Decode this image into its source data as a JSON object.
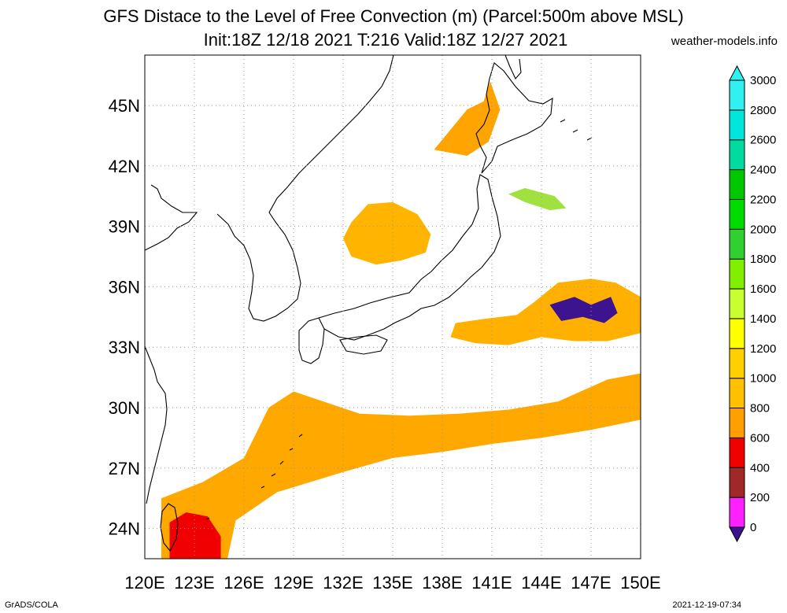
{
  "title_line1": "GFS Distace to the Level of Free Convection (m) (Parcel:500m above MSL)",
  "title_line2": "Init:18Z 12/18 2021 T:216 Valid:18Z 12/27 2021",
  "site": "weather-models.info",
  "footer_left": "GrADS/COLA",
  "footer_right": "2021-12-19-07:34",
  "map": {
    "lon_range": [
      120,
      150
    ],
    "lat_range": [
      22.5,
      47.5
    ],
    "lon_ticks": [
      "120E",
      "123E",
      "126E",
      "129E",
      "132E",
      "135E",
      "138E",
      "141E",
      "144E",
      "147E",
      "150E"
    ],
    "lat_ticks": [
      "24N",
      "27N",
      "30N",
      "33N",
      "36N",
      "39N",
      "42N",
      "45N"
    ],
    "grid": true
  },
  "colorbar": {
    "levels": [
      "0",
      "200",
      "400",
      "600",
      "800",
      "1000",
      "1200",
      "1400",
      "1600",
      "1800",
      "2000",
      "2200",
      "2400",
      "2600",
      "2800",
      "3000"
    ],
    "colors": [
      "#3c1490",
      "#ff20ff",
      "#a02828",
      "#f00000",
      "#ffa000",
      "#ffc000",
      "#ffd000",
      "#ffff00",
      "#c8ff30",
      "#80f000",
      "#30d030",
      "#00dc00",
      "#00c800",
      "#00dca0",
      "#00e6dc",
      "#30f0f0"
    ]
  },
  "fields": [
    {
      "name": "south-band-orange",
      "color": "#ffa800",
      "points": [
        [
          121,
          22.5
        ],
        [
          121,
          25.5
        ],
        [
          123.5,
          26.3
        ],
        [
          126,
          27.5
        ],
        [
          127.5,
          30
        ],
        [
          129,
          30.8
        ],
        [
          133,
          29.7
        ],
        [
          136,
          29.6
        ],
        [
          139,
          29.7
        ],
        [
          142,
          29.9
        ],
        [
          145,
          30.3
        ],
        [
          148,
          31.4
        ],
        [
          150,
          31.7
        ],
        [
          150,
          29.4
        ],
        [
          147,
          28.9
        ],
        [
          144,
          28.5
        ],
        [
          141,
          28.2
        ],
        [
          138,
          27.8
        ],
        [
          135,
          27.5
        ],
        [
          132,
          26.8
        ],
        [
          128,
          25.8
        ],
        [
          125.5,
          24.4
        ],
        [
          125,
          22.5
        ]
      ]
    },
    {
      "name": "korea-japan-sea-orange",
      "color": "#ffb400",
      "points": [
        [
          132.5,
          37.5
        ],
        [
          134,
          37.1
        ],
        [
          135.5,
          37.3
        ],
        [
          137,
          37.7
        ],
        [
          137.3,
          38.6
        ],
        [
          136.5,
          39.6
        ],
        [
          135,
          40.2
        ],
        [
          133.5,
          40.1
        ],
        [
          132.5,
          39.2
        ],
        [
          132,
          38.4
        ]
      ]
    },
    {
      "name": "hokkaido-orange",
      "color": "#ffa400",
      "points": [
        [
          137.5,
          42.8
        ],
        [
          138.5,
          43.8
        ],
        [
          139.5,
          44.8
        ],
        [
          140.5,
          45.2
        ],
        [
          140.9,
          46.2
        ],
        [
          141.5,
          44.8
        ],
        [
          140.8,
          43.2
        ],
        [
          139.5,
          42.5
        ]
      ]
    },
    {
      "name": "east-pacific-orange",
      "color": "#ffb000",
      "points": [
        [
          143.5,
          35.2
        ],
        [
          145,
          36.2
        ],
        [
          147,
          36.4
        ],
        [
          148.5,
          36.2
        ],
        [
          150,
          35.5
        ],
        [
          150,
          33.7
        ],
        [
          148,
          33.3
        ],
        [
          146,
          33.3
        ],
        [
          144,
          33.5
        ],
        [
          142,
          33.1
        ],
        [
          140,
          33.2
        ],
        [
          138.5,
          33.5
        ],
        [
          138.8,
          34.2
        ],
        [
          140.5,
          34.4
        ],
        [
          142.5,
          34.6
        ]
      ]
    },
    {
      "name": "east-china-sea-red",
      "color": "#f00000",
      "points": [
        [
          121.5,
          22.5
        ],
        [
          121.5,
          24.3
        ],
        [
          122.5,
          24.8
        ],
        [
          123.8,
          24.6
        ],
        [
          124.6,
          23.6
        ],
        [
          124.6,
          22.5
        ]
      ]
    },
    {
      "name": "pacific-low-purple",
      "color": "#3c1490",
      "points": [
        [
          144.5,
          35.1
        ],
        [
          146,
          35.5
        ],
        [
          147,
          35.1
        ],
        [
          148.2,
          35.5
        ],
        [
          148.6,
          34.7
        ],
        [
          147.8,
          34.2
        ],
        [
          146.5,
          34.5
        ],
        [
          145.2,
          34.3
        ]
      ]
    },
    {
      "name": "green-patch",
      "color": "#a0e040",
      "points": [
        [
          142,
          40.6
        ],
        [
          143,
          40.2
        ],
        [
          144.5,
          39.8
        ],
        [
          145.5,
          39.9
        ],
        [
          144.8,
          40.5
        ],
        [
          143,
          40.9
        ]
      ]
    }
  ]
}
